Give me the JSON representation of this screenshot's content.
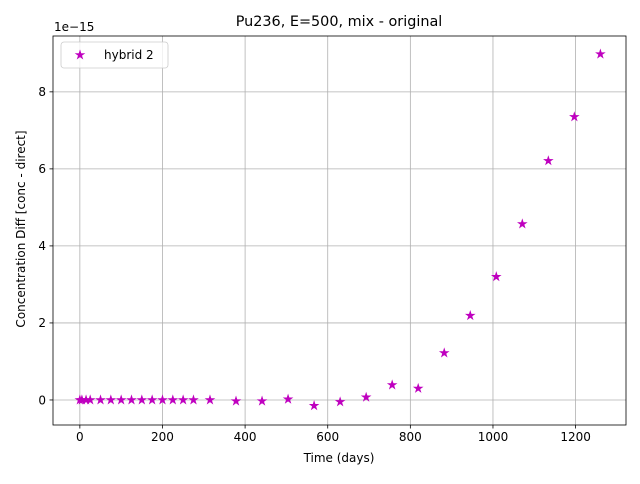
{
  "chart_data": {
    "type": "scatter",
    "title": "Pu236, E=500, mix - original",
    "xlabel": "Time (days)",
    "ylabel": "Concentration Diff [conc - direct]",
    "y_offset_label": "1e−15",
    "xlim": [
      -65,
      1322
    ],
    "ylim": [
      -0.65,
      9.45
    ],
    "y_scale_factor": 1e-15,
    "grid": true,
    "legend_position": "upper left",
    "x_ticks": [
      0,
      200,
      400,
      600,
      800,
      1000,
      1200
    ],
    "y_ticks": [
      0,
      2,
      4,
      6,
      8
    ],
    "marker": "star",
    "series": [
      {
        "name": "hybrid 2",
        "color": "#bf00bf",
        "x": [
          0,
          5,
          15,
          25,
          50,
          75,
          100,
          125,
          150,
          175,
          200,
          225,
          250,
          275,
          315,
          378,
          441,
          504,
          567,
          630,
          693,
          756,
          819,
          882,
          945,
          1008,
          1071,
          1134,
          1197,
          1260
        ],
        "y": [
          0,
          0,
          0,
          0,
          0,
          0,
          0,
          0,
          0,
          0,
          0,
          0,
          0,
          0,
          0,
          -0.03,
          -0.03,
          0.02,
          -0.15,
          -0.05,
          0.07,
          0.39,
          0.3,
          1.22,
          2.19,
          3.2,
          4.57,
          6.21,
          7.35,
          8.98
        ]
      }
    ]
  }
}
